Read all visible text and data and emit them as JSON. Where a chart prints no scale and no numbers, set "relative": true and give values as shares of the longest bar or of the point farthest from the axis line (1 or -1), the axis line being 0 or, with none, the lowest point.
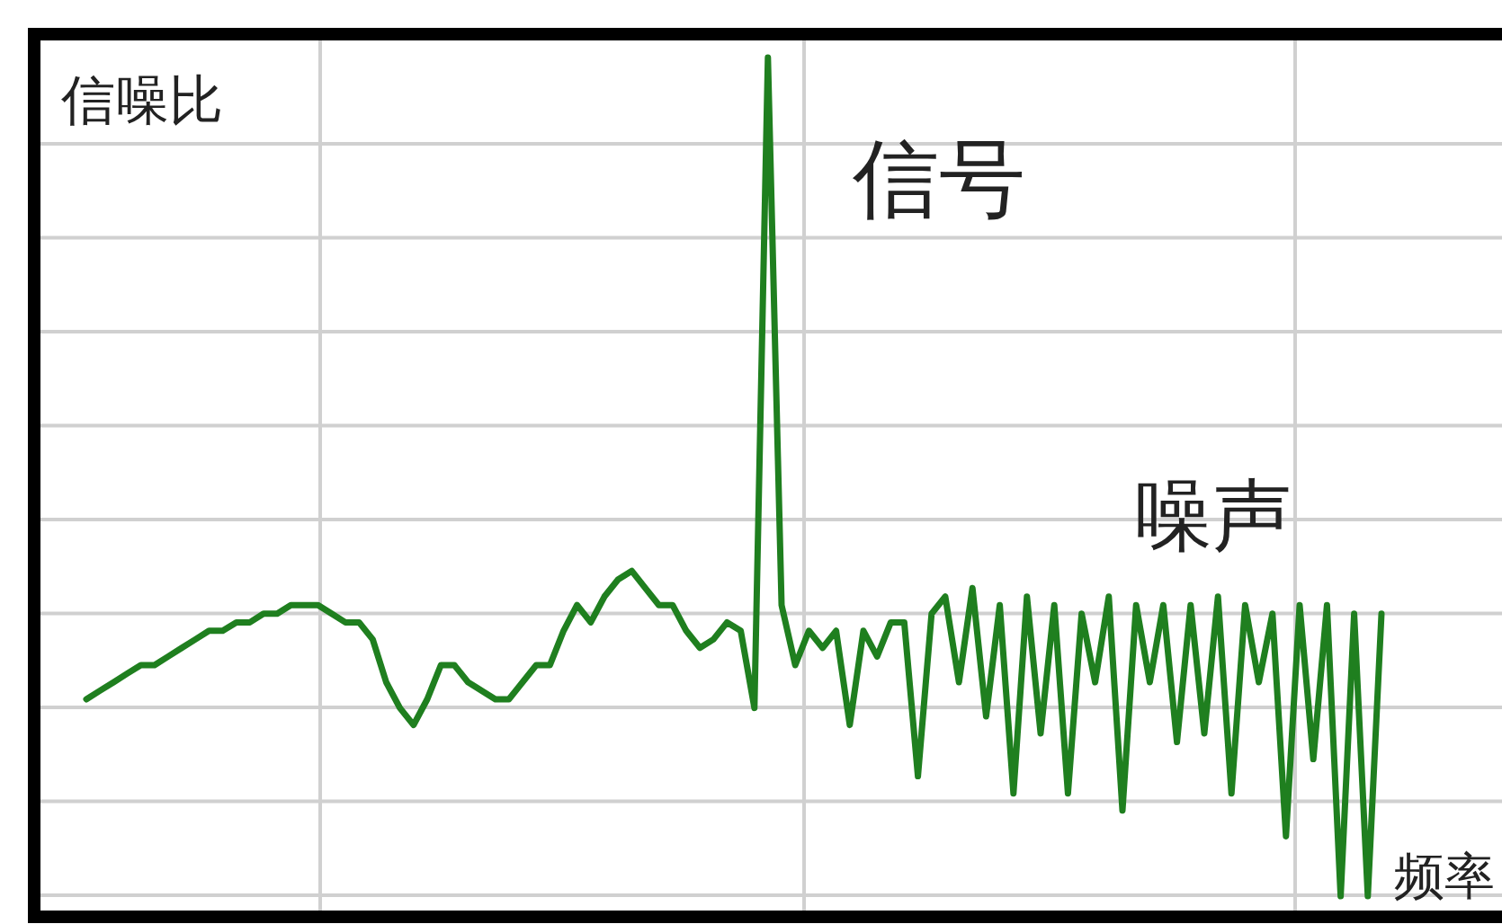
{
  "chart_data": {
    "type": "line",
    "relative": true,
    "ylabel": "信噪比",
    "xlabel": "频率",
    "grid": true,
    "annotations": [
      "信号",
      "噪声"
    ],
    "categories": [
      null,
      null,
      null,
      null,
      null,
      null,
      null,
      null,
      null,
      null,
      null,
      null,
      null,
      null,
      null,
      null,
      null,
      null,
      null,
      null,
      null,
      null,
      null,
      null,
      null,
      null,
      null,
      null,
      null,
      null,
      null,
      null,
      null,
      null,
      null,
      null,
      null,
      null,
      null,
      null,
      null,
      null,
      null,
      null,
      null,
      null,
      null,
      null,
      null,
      null,
      null,
      null,
      null,
      null,
      null,
      null,
      null,
      null,
      null,
      null,
      null,
      null,
      null,
      null,
      null,
      null,
      null,
      null,
      null,
      null,
      null,
      null,
      null,
      null,
      null,
      null,
      null,
      null,
      null,
      null,
      null,
      null,
      null,
      null,
      null,
      null,
      null,
      null,
      null,
      null,
      null,
      null,
      null,
      null,
      null,
      null
    ],
    "series": [
      {
        "color": "#1f7f1f",
        "values": [
          0.25,
          0.26,
          0.27,
          0.28,
          0.29,
          0.29,
          0.3,
          0.31,
          0.32,
          0.33,
          0.33,
          0.34,
          0.34,
          0.35,
          0.35,
          0.36,
          0.36,
          0.36,
          0.35,
          0.34,
          0.34,
          0.32,
          0.27,
          0.24,
          0.22,
          0.25,
          0.29,
          0.29,
          0.27,
          0.26,
          0.25,
          0.25,
          0.27,
          0.29,
          0.29,
          0.33,
          0.36,
          0.34,
          0.37,
          0.39,
          0.4,
          0.38,
          0.36,
          0.36,
          0.33,
          0.31,
          0.32,
          0.34,
          0.33,
          0.24,
          1,
          0.36,
          0.29,
          0.33,
          0.31,
          0.33,
          0.22,
          0.33,
          0.3,
          0.34,
          0.34,
          0.16,
          0.35,
          0.37,
          0.27,
          0.38,
          0.23,
          0.36,
          0.14,
          0.37,
          0.21,
          0.36,
          0.14,
          0.35,
          0.27,
          0.37,
          0.12,
          0.36,
          0.27,
          0.36,
          0.2,
          0.36,
          0.21,
          0.37,
          0.14,
          0.36,
          0.27,
          0.35,
          0.09,
          0.36,
          0.18,
          0.36,
          0.02,
          0.35,
          0.02,
          0.35
        ]
      }
    ]
  }
}
